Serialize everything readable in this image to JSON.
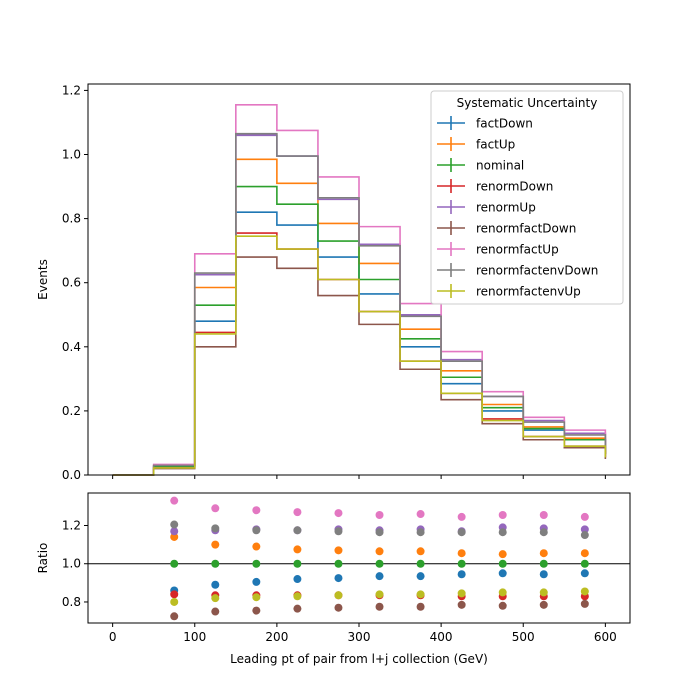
{
  "chart_data": [
    {
      "type": "line",
      "ylabel": "Events",
      "ylim": [
        0,
        1.22
      ],
      "xlim": [
        -30,
        630
      ],
      "yticks": [
        "0.0",
        "0.2",
        "0.4",
        "0.6",
        "0.8",
        "1.0",
        "1.2"
      ],
      "ytick_values": [
        0,
        0.2,
        0.4,
        0.6,
        0.8,
        1.0,
        1.2
      ],
      "bin_edges": [
        0,
        50,
        100,
        150,
        200,
        250,
        300,
        350,
        400,
        450,
        500,
        550,
        600
      ],
      "legend_title": "Systematic Uncertainty",
      "legend_position": "upper right",
      "series": [
        {
          "name": "factDown",
          "color": "#1f77b4",
          "values": [
            0.0,
            0.025,
            0.48,
            0.82,
            0.78,
            0.68,
            0.565,
            0.4,
            0.285,
            0.2,
            0.14,
            0.11,
            0.065
          ]
        },
        {
          "name": "factUp",
          "color": "#ff7f0e",
          "values": [
            0.0,
            0.028,
            0.585,
            0.985,
            0.91,
            0.785,
            0.66,
            0.455,
            0.325,
            0.22,
            0.15,
            0.115,
            0.065
          ]
        },
        {
          "name": "nominal",
          "color": "#2ca02c",
          "values": [
            0.0,
            0.027,
            0.53,
            0.9,
            0.845,
            0.73,
            0.61,
            0.425,
            0.305,
            0.21,
            0.145,
            0.11,
            0.065
          ]
        },
        {
          "name": "renormDown",
          "color": "#d62728",
          "values": [
            0.0,
            0.022,
            0.445,
            0.755,
            0.705,
            0.61,
            0.51,
            0.355,
            0.255,
            0.175,
            0.12,
            0.09,
            0.055
          ]
        },
        {
          "name": "renormUp",
          "color": "#9467bd",
          "values": [
            0.0,
            0.03,
            0.625,
            1.06,
            0.995,
            0.86,
            0.72,
            0.5,
            0.36,
            0.245,
            0.17,
            0.13,
            0.075
          ]
        },
        {
          "name": "renormfactDown",
          "color": "#8c564b",
          "values": [
            0.0,
            0.02,
            0.4,
            0.68,
            0.645,
            0.56,
            0.47,
            0.33,
            0.235,
            0.16,
            0.11,
            0.085,
            0.05
          ]
        },
        {
          "name": "renormfactUp",
          "color": "#e377c2",
          "values": [
            0.0,
            0.033,
            0.69,
            1.155,
            1.075,
            0.93,
            0.775,
            0.535,
            0.385,
            0.26,
            0.18,
            0.14,
            0.08
          ]
        },
        {
          "name": "renormfactenvDown",
          "color": "#7f7f7f",
          "values": [
            0.0,
            0.03,
            0.63,
            1.065,
            0.995,
            0.865,
            0.715,
            0.495,
            0.355,
            0.245,
            0.165,
            0.125,
            0.075
          ]
        },
        {
          "name": "renormfactenvUp",
          "color": "#bcbd22",
          "values": [
            0.0,
            0.022,
            0.44,
            0.745,
            0.705,
            0.61,
            0.51,
            0.355,
            0.255,
            0.17,
            0.12,
            0.09,
            0.055
          ]
        }
      ]
    },
    {
      "type": "scatter",
      "xlabel": "Leading pt of pair from l+j collection (GeV)",
      "ylabel": "Ratio",
      "ylim": [
        0.69,
        1.37
      ],
      "xlim": [
        -30,
        630
      ],
      "xticks": [
        "0",
        "100",
        "200",
        "300",
        "400",
        "500",
        "600"
      ],
      "xtick_values": [
        0,
        100,
        200,
        300,
        400,
        500,
        600
      ],
      "yticks": [
        "0.8",
        "1.0",
        "1.2"
      ],
      "ytick_values": [
        0.8,
        1.0,
        1.2
      ],
      "reference_line": 1.0,
      "x": [
        75,
        125,
        175,
        225,
        275,
        325,
        375,
        425,
        475,
        525,
        575
      ],
      "series": [
        {
          "name": "factDown",
          "color": "#1f77b4",
          "values": [
            0.86,
            0.89,
            0.905,
            0.92,
            0.925,
            0.935,
            0.935,
            0.945,
            0.95,
            0.945,
            0.95
          ]
        },
        {
          "name": "factUp",
          "color": "#ff7f0e",
          "values": [
            1.14,
            1.1,
            1.09,
            1.075,
            1.07,
            1.065,
            1.065,
            1.055,
            1.05,
            1.055,
            1.055
          ]
        },
        {
          "name": "nominal",
          "color": "#2ca02c",
          "values": [
            1.0,
            1.0,
            1.0,
            1.0,
            1.0,
            1.0,
            1.0,
            1.0,
            1.0,
            1.0,
            1.0
          ]
        },
        {
          "name": "renormDown",
          "color": "#d62728",
          "values": [
            0.84,
            0.835,
            0.835,
            0.835,
            0.835,
            0.835,
            0.835,
            0.83,
            0.83,
            0.83,
            0.83
          ]
        },
        {
          "name": "renormUp",
          "color": "#9467bd",
          "values": [
            1.17,
            1.175,
            1.18,
            1.175,
            1.18,
            1.175,
            1.18,
            1.17,
            1.19,
            1.185,
            1.18
          ]
        },
        {
          "name": "renormfactDown",
          "color": "#8c564b",
          "values": [
            0.725,
            0.75,
            0.755,
            0.765,
            0.77,
            0.775,
            0.775,
            0.785,
            0.78,
            0.785,
            0.79
          ]
        },
        {
          "name": "renormfactUp",
          "color": "#e377c2",
          "values": [
            1.33,
            1.29,
            1.28,
            1.27,
            1.265,
            1.255,
            1.26,
            1.245,
            1.255,
            1.255,
            1.245
          ]
        },
        {
          "name": "renormfactenvDown",
          "color": "#7f7f7f",
          "values": [
            1.205,
            1.185,
            1.175,
            1.175,
            1.17,
            1.165,
            1.165,
            1.165,
            1.165,
            1.165,
            1.15
          ]
        },
        {
          "name": "renormfactenvUp",
          "color": "#bcbd22",
          "values": [
            0.8,
            0.82,
            0.825,
            0.83,
            0.835,
            0.84,
            0.84,
            0.845,
            0.85,
            0.85,
            0.855
          ]
        }
      ]
    }
  ]
}
